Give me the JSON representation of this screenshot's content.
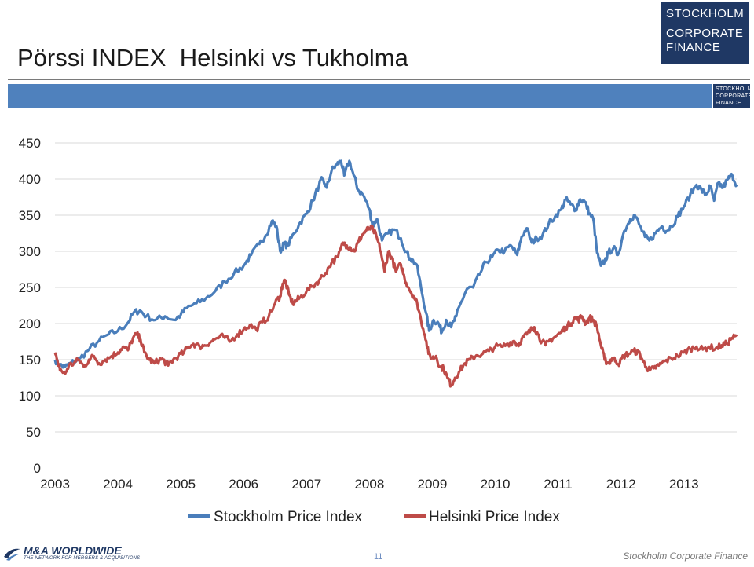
{
  "slide": {
    "title": "Pörssi INDEX  Helsinki vs Tukholma",
    "page_number": "11",
    "footer_text": "Stockholm Corporate Finance"
  },
  "logos": {
    "brand": {
      "line1": "STOCKHOLM",
      "line2": "CORPORATE",
      "line3": "FINANCE",
      "color": "#1f3864"
    },
    "partner": {
      "name": "M&A WORLDWIDE",
      "tagline": "THE NETWORK FOR MERGERS & ACQUISITIONS"
    }
  },
  "colors": {
    "band": "#4f81bd",
    "stockholm": "#4a7ebb",
    "helsinki": "#be4b48",
    "grid": "#d9d9d9"
  },
  "chart_data": {
    "type": "line",
    "title": "",
    "xlabel": "",
    "ylabel": "",
    "x_ticks": [
      "2003",
      "2004",
      "2005",
      "2006",
      "2007",
      "2008",
      "2009",
      "2010",
      "2011",
      "2012",
      "2013"
    ],
    "x_range": [
      2003.0,
      2013.84
    ],
    "y_ticks": [
      "0",
      "50",
      "100",
      "150",
      "200",
      "250",
      "300",
      "350",
      "400",
      "450"
    ],
    "ylim": [
      0,
      450
    ],
    "grid": "horizontal",
    "legend": "bottom",
    "series": [
      {
        "name": "Stockholm Price Index",
        "color": "#4a7ebb",
        "points": [
          [
            2003.0,
            150
          ],
          [
            2003.08,
            142
          ],
          [
            2003.16,
            140
          ],
          [
            2003.25,
            145
          ],
          [
            2003.4,
            152
          ],
          [
            2003.55,
            165
          ],
          [
            2003.7,
            176
          ],
          [
            2003.85,
            185
          ],
          [
            2004.0,
            190
          ],
          [
            2004.15,
            200
          ],
          [
            2004.25,
            215
          ],
          [
            2004.35,
            218
          ],
          [
            2004.45,
            210
          ],
          [
            2004.6,
            205
          ],
          [
            2004.75,
            210
          ],
          [
            2004.9,
            205
          ],
          [
            2005.0,
            212
          ],
          [
            2005.1,
            222
          ],
          [
            2005.25,
            228
          ],
          [
            2005.4,
            235
          ],
          [
            2005.55,
            245
          ],
          [
            2005.7,
            258
          ],
          [
            2005.85,
            270
          ],
          [
            2006.0,
            280
          ],
          [
            2006.12,
            295
          ],
          [
            2006.25,
            310
          ],
          [
            2006.35,
            322
          ],
          [
            2006.45,
            342
          ],
          [
            2006.52,
            335
          ],
          [
            2006.58,
            300
          ],
          [
            2006.64,
            310
          ],
          [
            2006.7,
            308
          ],
          [
            2006.8,
            325
          ],
          [
            2006.9,
            340
          ],
          [
            2007.0,
            352
          ],
          [
            2007.1,
            370
          ],
          [
            2007.2,
            392
          ],
          [
            2007.25,
            400
          ],
          [
            2007.32,
            388
          ],
          [
            2007.4,
            412
          ],
          [
            2007.48,
            420
          ],
          [
            2007.55,
            425
          ],
          [
            2007.6,
            405
          ],
          [
            2007.68,
            425
          ],
          [
            2007.75,
            405
          ],
          [
            2007.82,
            385
          ],
          [
            2007.9,
            378
          ],
          [
            2008.0,
            358
          ],
          [
            2008.05,
            335
          ],
          [
            2008.12,
            345
          ],
          [
            2008.2,
            315
          ],
          [
            2008.3,
            325
          ],
          [
            2008.4,
            330
          ],
          [
            2008.5,
            318
          ],
          [
            2008.58,
            300
          ],
          [
            2008.65,
            290
          ],
          [
            2008.75,
            282
          ],
          [
            2008.82,
            250
          ],
          [
            2008.9,
            215
          ],
          [
            2008.95,
            190
          ],
          [
            2009.02,
            205
          ],
          [
            2009.1,
            200
          ],
          [
            2009.15,
            188
          ],
          [
            2009.22,
            205
          ],
          [
            2009.3,
            195
          ],
          [
            2009.38,
            210
          ],
          [
            2009.46,
            230
          ],
          [
            2009.55,
            248
          ],
          [
            2009.65,
            250
          ],
          [
            2009.75,
            268
          ],
          [
            2009.85,
            285
          ],
          [
            2009.95,
            292
          ],
          [
            2010.05,
            302
          ],
          [
            2010.15,
            300
          ],
          [
            2010.25,
            308
          ],
          [
            2010.35,
            295
          ],
          [
            2010.42,
            320
          ],
          [
            2010.5,
            332
          ],
          [
            2010.58,
            312
          ],
          [
            2010.66,
            318
          ],
          [
            2010.75,
            322
          ],
          [
            2010.85,
            338
          ],
          [
            2010.95,
            348
          ],
          [
            2011.05,
            358
          ],
          [
            2011.12,
            372
          ],
          [
            2011.2,
            365
          ],
          [
            2011.28,
            358
          ],
          [
            2011.35,
            372
          ],
          [
            2011.43,
            368
          ],
          [
            2011.5,
            352
          ],
          [
            2011.56,
            345
          ],
          [
            2011.62,
            298
          ],
          [
            2011.68,
            280
          ],
          [
            2011.74,
            286
          ],
          [
            2011.8,
            298
          ],
          [
            2011.88,
            305
          ],
          [
            2011.95,
            295
          ],
          [
            2012.05,
            328
          ],
          [
            2012.15,
            345
          ],
          [
            2012.22,
            350
          ],
          [
            2012.3,
            335
          ],
          [
            2012.38,
            320
          ],
          [
            2012.45,
            315
          ],
          [
            2012.55,
            325
          ],
          [
            2012.65,
            335
          ],
          [
            2012.72,
            328
          ],
          [
            2012.8,
            335
          ],
          [
            2012.9,
            348
          ],
          [
            2013.0,
            362
          ],
          [
            2013.1,
            378
          ],
          [
            2013.2,
            392
          ],
          [
            2013.28,
            385
          ],
          [
            2013.35,
            378
          ],
          [
            2013.42,
            390
          ],
          [
            2013.48,
            370
          ],
          [
            2013.55,
            395
          ],
          [
            2013.62,
            388
          ],
          [
            2013.7,
            400
          ],
          [
            2013.77,
            405
          ],
          [
            2013.84,
            392
          ]
        ]
      },
      {
        "name": "Helsinki Price Index",
        "color": "#be4b48",
        "points": [
          [
            2003.0,
            160
          ],
          [
            2003.05,
            142
          ],
          [
            2003.1,
            135
          ],
          [
            2003.16,
            130
          ],
          [
            2003.22,
            142
          ],
          [
            2003.3,
            145
          ],
          [
            2003.38,
            150
          ],
          [
            2003.46,
            140
          ],
          [
            2003.54,
            150
          ],
          [
            2003.62,
            155
          ],
          [
            2003.7,
            145
          ],
          [
            2003.8,
            150
          ],
          [
            2003.9,
            155
          ],
          [
            2004.0,
            160
          ],
          [
            2004.08,
            168
          ],
          [
            2004.16,
            163
          ],
          [
            2004.24,
            180
          ],
          [
            2004.3,
            185
          ],
          [
            2004.36,
            178
          ],
          [
            2004.42,
            160
          ],
          [
            2004.5,
            150
          ],
          [
            2004.58,
            145
          ],
          [
            2004.66,
            150
          ],
          [
            2004.72,
            150
          ],
          [
            2004.8,
            142
          ],
          [
            2004.88,
            150
          ],
          [
            2004.96,
            155
          ],
          [
            2005.05,
            160
          ],
          [
            2005.12,
            168
          ],
          [
            2005.2,
            172
          ],
          [
            2005.3,
            168
          ],
          [
            2005.38,
            170
          ],
          [
            2005.48,
            175
          ],
          [
            2005.58,
            180
          ],
          [
            2005.68,
            182
          ],
          [
            2005.78,
            175
          ],
          [
            2005.9,
            185
          ],
          [
            2006.0,
            192
          ],
          [
            2006.1,
            198
          ],
          [
            2006.2,
            192
          ],
          [
            2006.3,
            202
          ],
          [
            2006.4,
            210
          ],
          [
            2006.5,
            228
          ],
          [
            2006.58,
            238
          ],
          [
            2006.62,
            255
          ],
          [
            2006.66,
            260
          ],
          [
            2006.72,
            240
          ],
          [
            2006.78,
            228
          ],
          [
            2006.84,
            232
          ],
          [
            2006.9,
            236
          ],
          [
            2007.0,
            245
          ],
          [
            2007.1,
            252
          ],
          [
            2007.2,
            260
          ],
          [
            2007.3,
            270
          ],
          [
            2007.4,
            285
          ],
          [
            2007.5,
            292
          ],
          [
            2007.58,
            312
          ],
          [
            2007.64,
            308
          ],
          [
            2007.7,
            305
          ],
          [
            2007.76,
            300
          ],
          [
            2007.82,
            312
          ],
          [
            2007.88,
            322
          ],
          [
            2007.94,
            328
          ],
          [
            2008.0,
            332
          ],
          [
            2008.06,
            330
          ],
          [
            2008.12,
            318
          ],
          [
            2008.18,
            300
          ],
          [
            2008.24,
            272
          ],
          [
            2008.3,
            300
          ],
          [
            2008.36,
            290
          ],
          [
            2008.42,
            272
          ],
          [
            2008.5,
            282
          ],
          [
            2008.56,
            262
          ],
          [
            2008.62,
            250
          ],
          [
            2008.7,
            238
          ],
          [
            2008.76,
            228
          ],
          [
            2008.82,
            205
          ],
          [
            2008.88,
            185
          ],
          [
            2008.94,
            158
          ],
          [
            2009.0,
            152
          ],
          [
            2009.06,
            155
          ],
          [
            2009.12,
            140
          ],
          [
            2009.18,
            138
          ],
          [
            2009.24,
            125
          ],
          [
            2009.3,
            115
          ],
          [
            2009.36,
            125
          ],
          [
            2009.44,
            135
          ],
          [
            2009.52,
            145
          ],
          [
            2009.6,
            150
          ],
          [
            2009.7,
            156
          ],
          [
            2009.8,
            158
          ],
          [
            2009.9,
            162
          ],
          [
            2010.0,
            168
          ],
          [
            2010.1,
            168
          ],
          [
            2010.2,
            172
          ],
          [
            2010.3,
            176
          ],
          [
            2010.36,
            170
          ],
          [
            2010.42,
            178
          ],
          [
            2010.5,
            185
          ],
          [
            2010.56,
            190
          ],
          [
            2010.62,
            195
          ],
          [
            2010.68,
            185
          ],
          [
            2010.74,
            175
          ],
          [
            2010.8,
            170
          ],
          [
            2010.88,
            178
          ],
          [
            2010.96,
            182
          ],
          [
            2011.05,
            188
          ],
          [
            2011.12,
            195
          ],
          [
            2011.2,
            200
          ],
          [
            2011.26,
            208
          ],
          [
            2011.32,
            205
          ],
          [
            2011.38,
            210
          ],
          [
            2011.44,
            200
          ],
          [
            2011.5,
            208
          ],
          [
            2011.56,
            205
          ],
          [
            2011.62,
            195
          ],
          [
            2011.68,
            170
          ],
          [
            2011.74,
            150
          ],
          [
            2011.8,
            145
          ],
          [
            2011.86,
            152
          ],
          [
            2011.92,
            148
          ],
          [
            2011.98,
            145
          ],
          [
            2012.04,
            155
          ],
          [
            2012.12,
            158
          ],
          [
            2012.2,
            162
          ],
          [
            2012.28,
            160
          ],
          [
            2012.34,
            150
          ],
          [
            2012.4,
            140
          ],
          [
            2012.46,
            135
          ],
          [
            2012.52,
            138
          ],
          [
            2012.6,
            142
          ],
          [
            2012.7,
            148
          ],
          [
            2012.8,
            152
          ],
          [
            2012.9,
            155
          ],
          [
            2013.0,
            160
          ],
          [
            2013.1,
            165
          ],
          [
            2013.2,
            168
          ],
          [
            2013.3,
            164
          ],
          [
            2013.4,
            168
          ],
          [
            2013.5,
            165
          ],
          [
            2013.6,
            170
          ],
          [
            2013.68,
            172
          ],
          [
            2013.76,
            180
          ],
          [
            2013.84,
            182
          ]
        ]
      }
    ]
  }
}
